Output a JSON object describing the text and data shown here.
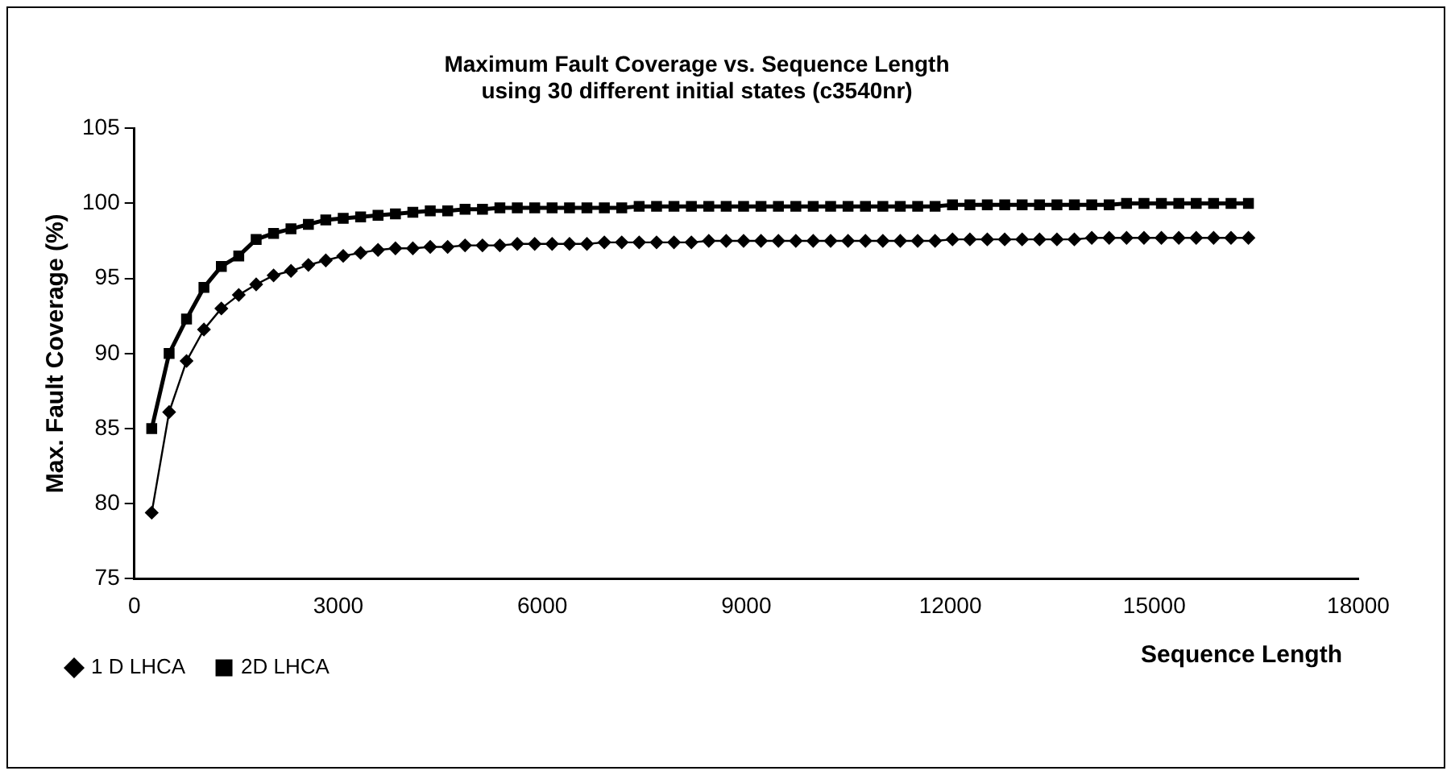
{
  "chart_data": {
    "type": "line",
    "title": "Maximum Fault Coverage vs. Sequence Length using 30 different initial states (c3540nr)",
    "xlabel": "Sequence Length",
    "ylabel": "Max. Fault Coverage (%)",
    "x": [
      256,
      512,
      768,
      1024,
      1280,
      1536,
      1792,
      2048,
      2304,
      2560,
      2816,
      3072,
      3328,
      3584,
      3840,
      4096,
      4352,
      4608,
      4864,
      5120,
      5376,
      5632,
      5888,
      6144,
      6400,
      6656,
      6912,
      7168,
      7424,
      7680,
      7936,
      8192,
      8448,
      8704,
      8960,
      9216,
      9472,
      9728,
      9984,
      10240,
      10496,
      10752,
      11008,
      11264,
      11520,
      11776,
      12032,
      12288,
      12544,
      12800,
      13056,
      13312,
      13568,
      13824,
      14080,
      14336,
      14592,
      14848,
      15104,
      15360,
      15616,
      15872,
      16128,
      16384
    ],
    "series": [
      {
        "name": "1 D LHCA",
        "color": "#000000",
        "marker": "diamond",
        "values": [
          79.4,
          86.1,
          89.5,
          91.6,
          93.0,
          93.9,
          94.6,
          95.2,
          95.5,
          95.9,
          96.2,
          96.5,
          96.7,
          96.9,
          97.0,
          97.0,
          97.1,
          97.1,
          97.2,
          97.2,
          97.2,
          97.3,
          97.3,
          97.3,
          97.3,
          97.3,
          97.4,
          97.4,
          97.4,
          97.4,
          97.4,
          97.4,
          97.5,
          97.5,
          97.5,
          97.5,
          97.5,
          97.5,
          97.5,
          97.5,
          97.5,
          97.5,
          97.5,
          97.5,
          97.5,
          97.5,
          97.6,
          97.6,
          97.6,
          97.6,
          97.6,
          97.6,
          97.6,
          97.6,
          97.7,
          97.7,
          97.7,
          97.7,
          97.7,
          97.7,
          97.7,
          97.7,
          97.7,
          97.7
        ]
      },
      {
        "name": "2D LHCA",
        "color": "#000000",
        "marker": "square",
        "values": [
          85.0,
          90.0,
          92.3,
          94.4,
          95.8,
          96.5,
          97.6,
          98.0,
          98.3,
          98.6,
          98.9,
          99.0,
          99.1,
          99.2,
          99.3,
          99.4,
          99.5,
          99.5,
          99.6,
          99.6,
          99.7,
          99.7,
          99.7,
          99.7,
          99.7,
          99.7,
          99.7,
          99.7,
          99.8,
          99.8,
          99.8,
          99.8,
          99.8,
          99.8,
          99.8,
          99.8,
          99.8,
          99.8,
          99.8,
          99.8,
          99.8,
          99.8,
          99.8,
          99.8,
          99.8,
          99.8,
          99.9,
          99.9,
          99.9,
          99.9,
          99.9,
          99.9,
          99.9,
          99.9,
          99.9,
          99.9,
          100.0,
          100.0,
          100.0,
          100.0,
          100.0,
          100.0,
          100.0,
          100.0
        ]
      }
    ],
    "xlim": [
      0,
      18000
    ],
    "xticks": [
      0,
      3000,
      6000,
      9000,
      12000,
      15000,
      18000
    ],
    "ylim": [
      75,
      105
    ],
    "yticks": [
      75,
      80,
      85,
      90,
      95,
      100,
      105
    ],
    "grid": false,
    "legend": "bottom left",
    "line_style": "solid"
  }
}
